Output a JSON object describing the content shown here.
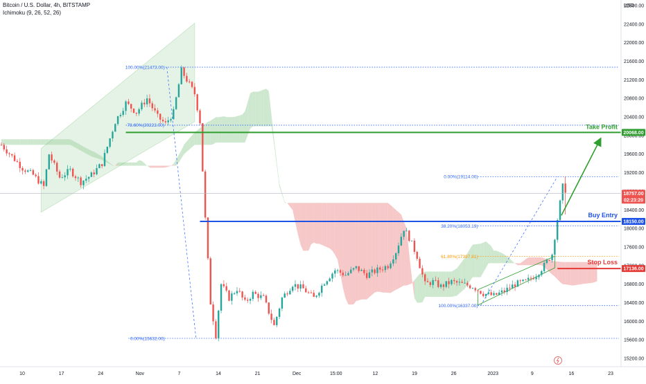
{
  "header": {
    "symbol_line": "Bitcoin / U.S. Dollar, 4h, BITSTAMP",
    "indicator_line": "Ichimoku (9, 26, 52, 26)"
  },
  "currency_label": "USD",
  "colors": {
    "up": "#26a69a",
    "down": "#ef5350",
    "buy_line": "#1e53e5",
    "stop_line": "#e53935",
    "take_profit_line": "#2e9e2e",
    "fib_blue": "#2962ff",
    "fib_orange": "#ff9800",
    "cloud_green": "#a5d6a7",
    "cloud_red": "#ef9a9a",
    "channel": "#2e9e2e"
  },
  "chart_data": {
    "type": "candlestick",
    "timeframe": "4h",
    "ylim": [
      15200,
      22800
    ],
    "y_ticks": [
      "15200.00",
      "15600.00",
      "16000.00",
      "16400.00",
      "16800.00",
      "17200.00",
      "17600.00",
      "18000.00",
      "18400.00",
      "18800.00",
      "19200.00",
      "19600.00",
      "20000.00",
      "20400.00",
      "20800.00",
      "21200.00",
      "21600.00",
      "22000.00",
      "22400.00",
      "22800.00"
    ],
    "x_ticks": [
      "10",
      "17",
      "24",
      "Nov",
      "7",
      "14",
      "21",
      "Dec",
      "15:00",
      "12",
      "19",
      "26",
      "2023",
      "9",
      "16",
      "23"
    ],
    "price_path": [
      {
        "t": 0,
        "p": 19800
      },
      {
        "t": 4,
        "p": 19550
      },
      {
        "t": 8,
        "p": 19300
      },
      {
        "t": 12,
        "p": 19150
      },
      {
        "t": 16,
        "p": 18900
      },
      {
        "t": 18,
        "p": 19600
      },
      {
        "t": 22,
        "p": 19100
      },
      {
        "t": 26,
        "p": 19250
      },
      {
        "t": 30,
        "p": 19000
      },
      {
        "t": 34,
        "p": 19150
      },
      {
        "t": 38,
        "p": 19400
      },
      {
        "t": 43,
        "p": 20300
      },
      {
        "t": 47,
        "p": 20700
      },
      {
        "t": 51,
        "p": 20500
      },
      {
        "t": 55,
        "p": 20800
      },
      {
        "t": 59,
        "p": 20400
      },
      {
        "t": 62,
        "p": 20250
      },
      {
        "t": 65,
        "p": 20500
      },
      {
        "t": 68,
        "p": 21400
      },
      {
        "t": 70,
        "p": 21200
      },
      {
        "t": 73,
        "p": 20900
      },
      {
        "t": 75,
        "p": 20300
      },
      {
        "t": 77,
        "p": 18200
      },
      {
        "t": 79,
        "p": 16400
      },
      {
        "t": 81,
        "p": 15700
      },
      {
        "t": 83,
        "p": 16800
      },
      {
        "t": 86,
        "p": 16500
      },
      {
        "t": 89,
        "p": 16700
      },
      {
        "t": 92,
        "p": 16400
      },
      {
        "t": 95,
        "p": 16600
      },
      {
        "t": 99,
        "p": 16500
      },
      {
        "t": 103,
        "p": 15900
      },
      {
        "t": 106,
        "p": 16500
      },
      {
        "t": 110,
        "p": 16800
      },
      {
        "t": 114,
        "p": 16700
      },
      {
        "t": 118,
        "p": 16500
      },
      {
        "t": 122,
        "p": 16850
      },
      {
        "t": 126,
        "p": 17100
      },
      {
        "t": 130,
        "p": 17000
      },
      {
        "t": 134,
        "p": 17150
      },
      {
        "t": 138,
        "p": 17000
      },
      {
        "t": 142,
        "p": 17100
      },
      {
        "t": 146,
        "p": 17200
      },
      {
        "t": 149,
        "p": 17500
      },
      {
        "t": 152,
        "p": 18000
      },
      {
        "t": 154,
        "p": 17800
      },
      {
        "t": 157,
        "p": 17400
      },
      {
        "t": 160,
        "p": 16800
      },
      {
        "t": 163,
        "p": 16850
      },
      {
        "t": 166,
        "p": 16750
      },
      {
        "t": 170,
        "p": 16850
      },
      {
        "t": 174,
        "p": 16800
      },
      {
        "t": 178,
        "p": 16750
      },
      {
        "t": 182,
        "p": 16600
      },
      {
        "t": 186,
        "p": 16550
      },
      {
        "t": 190,
        "p": 16650
      },
      {
        "t": 194,
        "p": 16800
      },
      {
        "t": 198,
        "p": 16850
      },
      {
        "t": 202,
        "p": 17000
      },
      {
        "t": 205,
        "p": 17200
      },
      {
        "t": 208,
        "p": 17450
      },
      {
        "t": 210,
        "p": 18200
      },
      {
        "t": 212,
        "p": 18900
      },
      {
        "t": 214,
        "p": 18757
      }
    ],
    "levels": {
      "take_profit": {
        "label": "Take Profit",
        "price": "20068.00",
        "value": 20068
      },
      "buy_entry": {
        "label": "Buy Entry",
        "price": "18150.00",
        "value": 18150
      },
      "stop_loss": {
        "label": "Stop Loss",
        "price": "17136.00",
        "value": 17136
      }
    },
    "last_price": {
      "price": "18757.00",
      "countdown": "02:23:20",
      "value": 18757
    },
    "fib_left": [
      {
        "label": "100.00%(21473.00)",
        "value": 21473
      },
      {
        "label": "78.60%(20223.00)",
        "value": 20223
      },
      {
        "label": "0.00%(15632.00)",
        "value": 15632
      }
    ],
    "fib_right": [
      {
        "label": "0.00%(19114.00)",
        "value": 19114,
        "color": "blue"
      },
      {
        "label": "38.20%(18053.19)",
        "value": 18053.19,
        "color": "blue"
      },
      {
        "label": "61.80%(17397.81)",
        "value": 17397.81,
        "color": "orange"
      },
      {
        "label": "100.00%(16337.00)",
        "value": 16337,
        "color": "blue"
      }
    ]
  }
}
